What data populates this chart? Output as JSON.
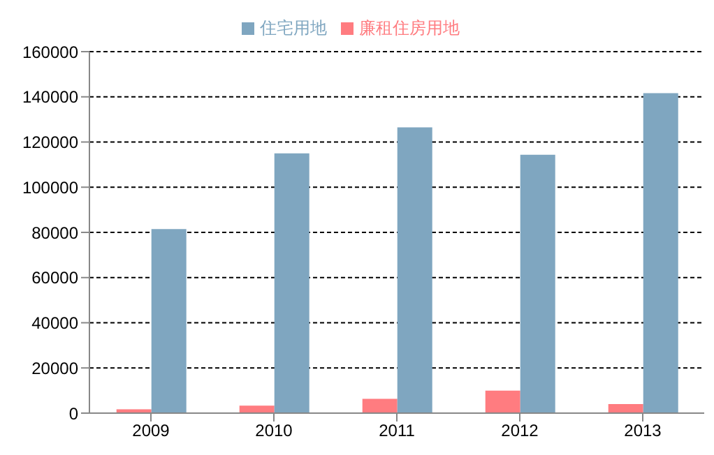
{
  "chart_data": {
    "type": "bar",
    "categories": [
      "2009",
      "2010",
      "2011",
      "2012",
      "2013"
    ],
    "series": [
      {
        "name": "廉租住房用地",
        "color": "#ff7c80",
        "values": [
          1700,
          3300,
          6300,
          10000,
          4000
        ]
      },
      {
        "name": "住宅用地",
        "color": "#7fa6c0",
        "values": [
          81500,
          115000,
          126500,
          114400,
          141600
        ]
      }
    ],
    "ylim": [
      0,
      160000
    ],
    "yticks": [
      0,
      20000,
      40000,
      60000,
      80000,
      100000,
      120000,
      140000,
      160000
    ],
    "grid": "y",
    "legend": "top"
  }
}
